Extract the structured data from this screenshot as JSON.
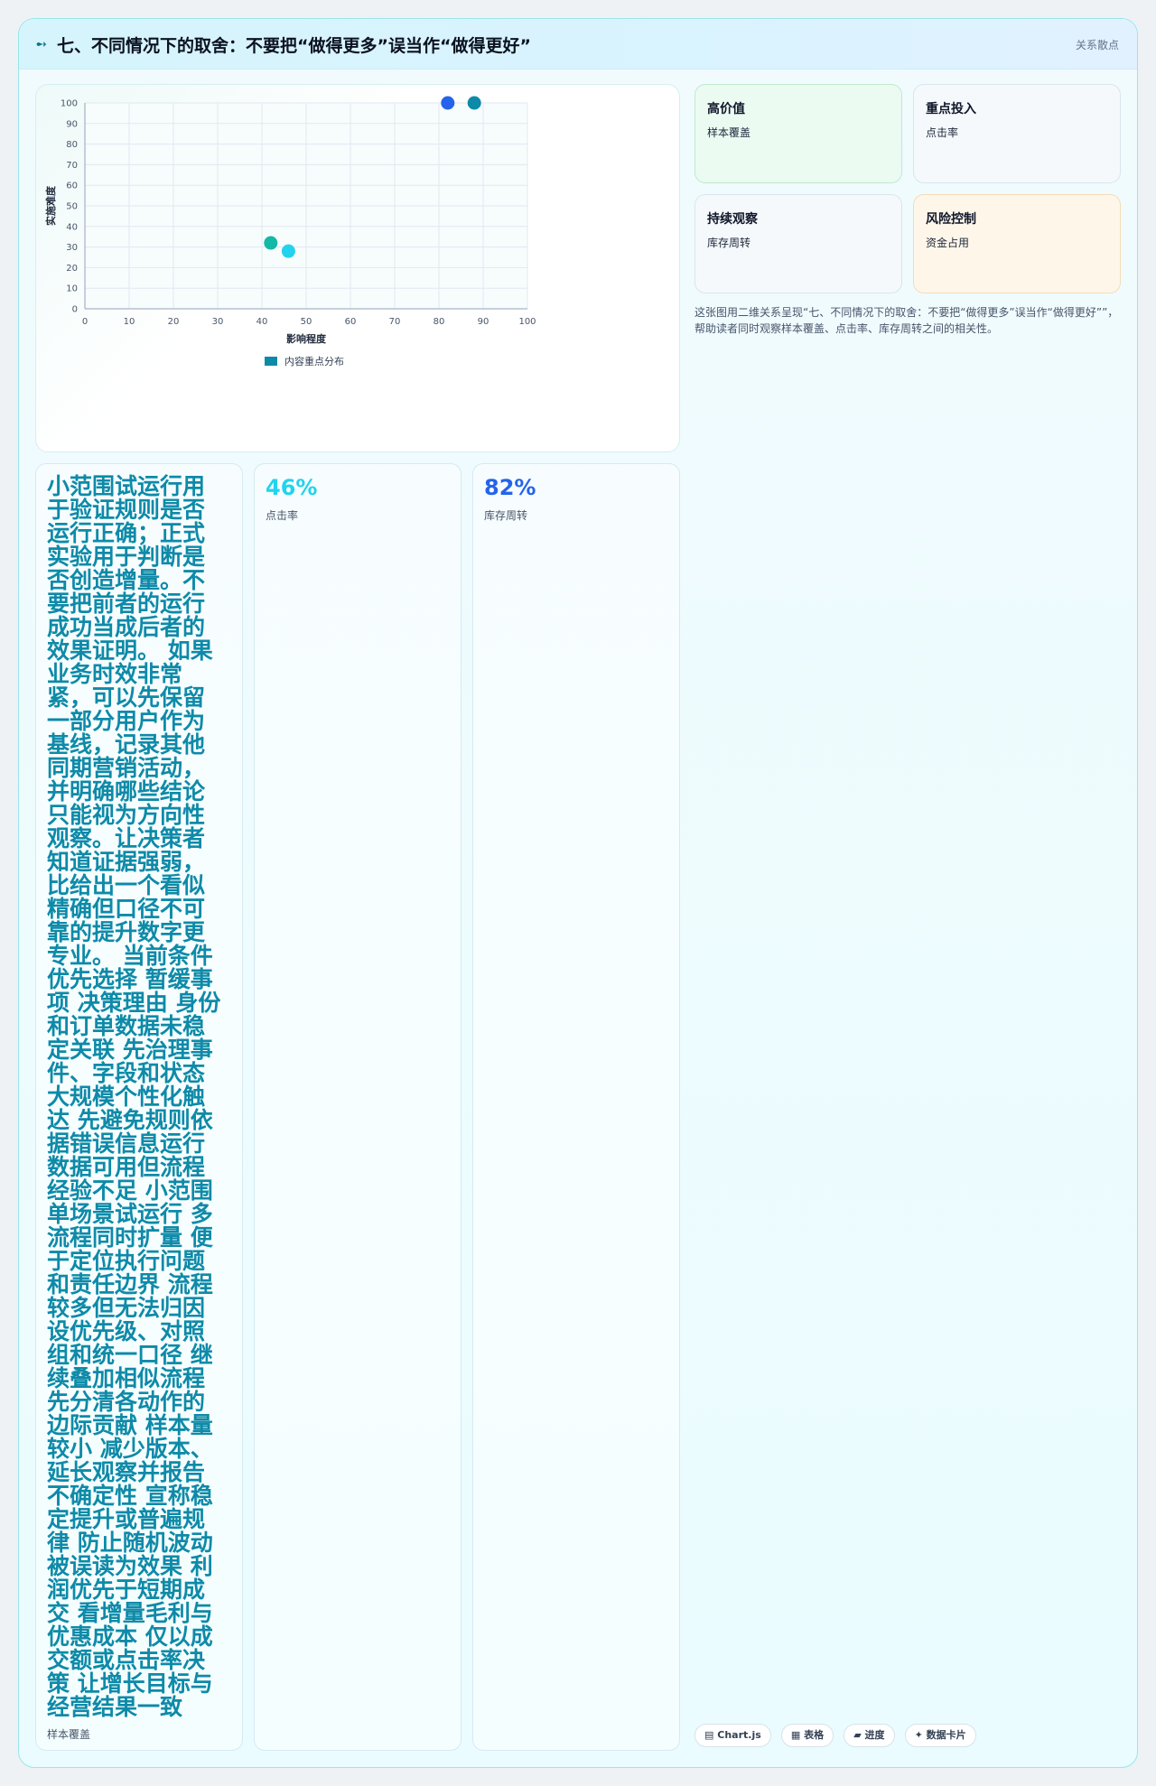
{
  "header": {
    "icon": "sparkle-icon",
    "title": "七、不同情况下的取舍：不要把“做得更多”误当作“做得更好”",
    "tag": "关系散点"
  },
  "chart_data": {
    "type": "scatter",
    "xlabel": "影响程度",
    "ylabel": "实施难度",
    "xlim": [
      0,
      100
    ],
    "ylim": [
      0,
      100
    ],
    "xticks": [
      0,
      10,
      20,
      30,
      40,
      50,
      60,
      70,
      80,
      90,
      100
    ],
    "yticks": [
      0,
      10,
      20,
      30,
      40,
      50,
      60,
      70,
      80,
      90,
      100
    ],
    "grid": true,
    "legend_position": "bottom",
    "series": [
      {
        "name": "内容重点分布",
        "color": "#0e8aa8",
        "points": [
          {
            "x": 42,
            "y": 32,
            "color": "#14b8a6"
          },
          {
            "x": 46,
            "y": 28,
            "color": "#22d3ee"
          },
          {
            "x": 82,
            "y": 100,
            "color": "#2563eb"
          },
          {
            "x": 88,
            "y": 100,
            "color": "#0e8aa8"
          }
        ]
      }
    ]
  },
  "quadrants": [
    {
      "title": "高价值",
      "sub": "样本覆盖"
    },
    {
      "title": "重点投入",
      "sub": "点击率"
    },
    {
      "title": "持续观察",
      "sub": "库存周转"
    },
    {
      "title": "风险控制",
      "sub": "资金占用"
    }
  ],
  "description": "这张图用二维关系呈现“七、不同情况下的取舍：不要把“做得更多”误当作“做得更好””，帮助读者同时观察样本覆盖、点击率、库存周转之间的相关性。",
  "text_card": {
    "body": "小范围试运行用于验证规则是否运行正确；正式实验用于判断是否创造增量。不要把前者的运行成功当成后者的效果证明。 如果业务时效非常紧，可以先保留一部分用户作为基线，记录其他同期营销活动，并明确哪些结论只能视为方向性观察。让决策者知道证据强弱，比给出一个看似精确但口径不可靠的提升数字更专业。 当前条件 优先选择 暂缓事项 决策理由 身份和订单数据未稳定关联 先治理事件、字段和状态 大规模个性化触达 先避免规则依据错误信息运行 数据可用但流程经验不足 小范围单场景试运行 多流程同时扩量 便于定位执行问题和责任边界 流程较多但无法归因 设优先级、对照组和统一口径 继续叠加相似流程 先分清各动作的边际贡献 样本量较小 减少版本、延长观察并报告不确定性 宣称稳定提升或普遍规律 防止随机波动被误读为效果 利润优先于短期成交 看增量毛利与优惠成本 仅以成交额或点击率决策 让增长目标与经营结果一致",
    "footer": "样本覆盖"
  },
  "metrics": [
    {
      "value": "46%",
      "label": "点击率",
      "color": "#22d3ee"
    },
    {
      "value": "82%",
      "label": "库存周转",
      "color": "#2563eb"
    }
  ],
  "chips": [
    {
      "icon": "chart-icon",
      "glyph": "▤",
      "label": "Chart.js"
    },
    {
      "icon": "table-icon",
      "glyph": "▦",
      "label": "表格"
    },
    {
      "icon": "progress-icon",
      "glyph": "▰",
      "label": "进度"
    },
    {
      "icon": "data-card-icon",
      "glyph": "✦",
      "label": "数据卡片"
    }
  ]
}
